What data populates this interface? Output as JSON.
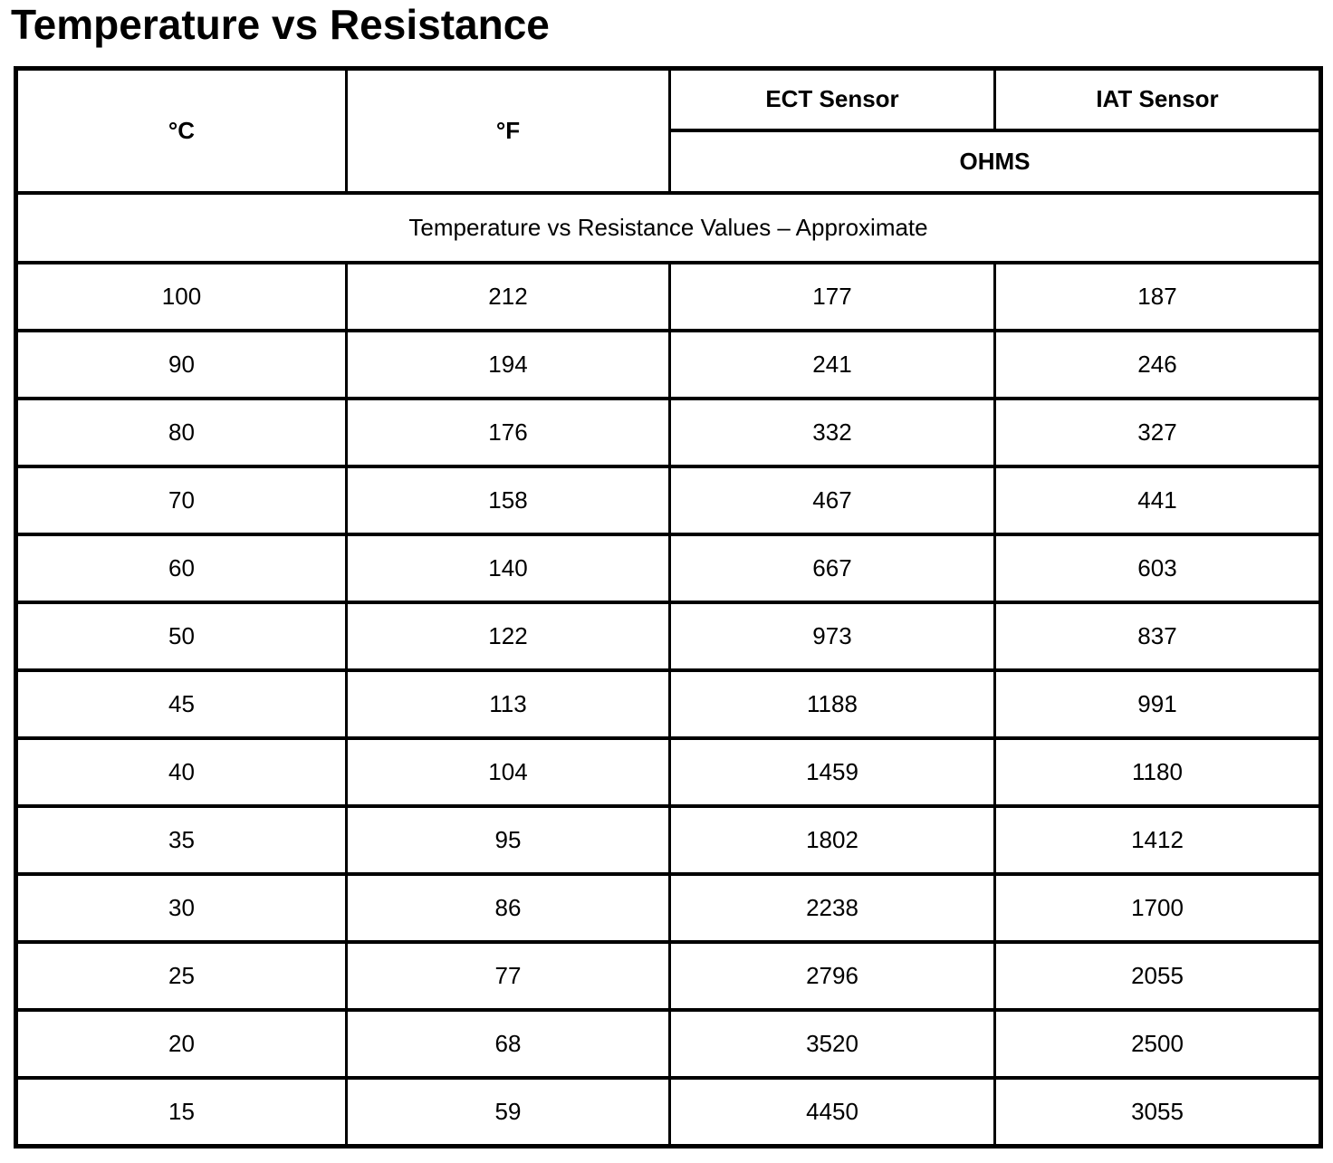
{
  "title": "Temperature vs Resistance",
  "colors": {
    "text": "#000000",
    "border": "#000000",
    "background": "#ffffff"
  },
  "table": {
    "headers": {
      "celsius": "°C",
      "fahrenheit": "°F",
      "ect": "ECT Sensor",
      "iat": "IAT Sensor",
      "ohms": "OHMS"
    },
    "subtitle": "Temperature vs Resistance Values – Approximate",
    "rows": [
      {
        "c": "100",
        "f": "212",
        "ect": "177",
        "iat": "187"
      },
      {
        "c": "90",
        "f": "194",
        "ect": "241",
        "iat": "246"
      },
      {
        "c": "80",
        "f": "176",
        "ect": "332",
        "iat": "327"
      },
      {
        "c": "70",
        "f": "158",
        "ect": "467",
        "iat": "441"
      },
      {
        "c": "60",
        "f": "140",
        "ect": "667",
        "iat": "603"
      },
      {
        "c": "50",
        "f": "122",
        "ect": "973",
        "iat": "837"
      },
      {
        "c": "45",
        "f": "113",
        "ect": "1188",
        "iat": "991"
      },
      {
        "c": "40",
        "f": "104",
        "ect": "1459",
        "iat": "1180"
      },
      {
        "c": "35",
        "f": "95",
        "ect": "1802",
        "iat": "1412"
      },
      {
        "c": "30",
        "f": "86",
        "ect": "2238",
        "iat": "1700"
      },
      {
        "c": "25",
        "f": "77",
        "ect": "2796",
        "iat": "2055"
      },
      {
        "c": "20",
        "f": "68",
        "ect": "3520",
        "iat": "2500"
      },
      {
        "c": "15",
        "f": "59",
        "ect": "4450",
        "iat": "3055"
      }
    ]
  }
}
